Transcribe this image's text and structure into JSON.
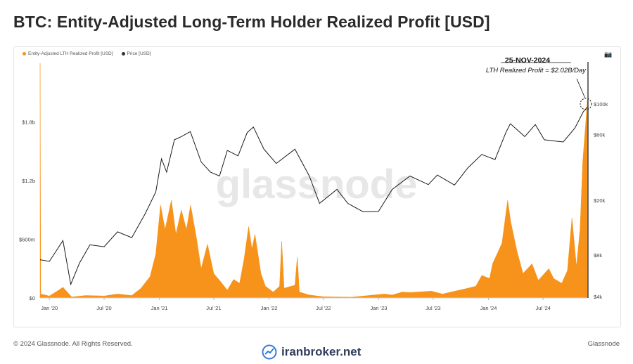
{
  "title": "BTC: Entity-Adjusted Long-Term Holder Realized Profit [USD]",
  "footer": {
    "copyright": "© 2024 Glassnode. All Rights Reserved.",
    "brand": "Glassnode"
  },
  "watermark": "glassnode",
  "branding": {
    "site": "iranbroker.net"
  },
  "colors": {
    "profit": "#f7931a",
    "price": "#1a1a1a",
    "annotation": "#111111"
  },
  "chart_data": {
    "type": "area",
    "legend": [
      {
        "name": "Entity-Adjusted LTH Realized Profit [USD]",
        "color": "#f7931a"
      },
      {
        "name": "Price [USD]",
        "color": "#333333"
      }
    ],
    "x_ticks": [
      "Jan '20",
      "Jul '20",
      "Jan '21",
      "Jul '21",
      "Jan '22",
      "Jul '22",
      "Jan '23",
      "Jul '23",
      "Jan '24",
      "Jul '24"
    ],
    "x_range": [
      "2019-12-01",
      "2024-11-25"
    ],
    "y_left": {
      "ticks": [
        "$0",
        "$600m",
        "$1.2b",
        "$1.8b"
      ],
      "tick_values": [
        0,
        600000000,
        1200000000,
        1800000000
      ],
      "range": [
        0,
        2400000000
      ]
    },
    "y_right": {
      "ticks": [
        "$4k",
        "$8k",
        "$20k",
        "$60k",
        "$100k"
      ],
      "tick_values": [
        4000,
        8000,
        20000,
        60000,
        100000
      ],
      "scale": "log"
    },
    "annotation": {
      "date": "25-NOV-2024",
      "text": "LTH Realized Profit = $2.02B/Day"
    },
    "series": [
      {
        "name": "Entity-Adjusted LTH Realized Profit [USD]",
        "axis": "left",
        "points": [
          [
            "2019-12-01",
            2400000000
          ],
          [
            "2019-12-03",
            40000000
          ],
          [
            "2020-01-01",
            20000000
          ],
          [
            "2020-02-01",
            80000000
          ],
          [
            "2020-02-15",
            110000000
          ],
          [
            "2020-03-15",
            10000000
          ],
          [
            "2020-05-01",
            25000000
          ],
          [
            "2020-07-01",
            20000000
          ],
          [
            "2020-08-15",
            40000000
          ],
          [
            "2020-10-01",
            25000000
          ],
          [
            "2020-11-01",
            100000000
          ],
          [
            "2020-12-01",
            220000000
          ],
          [
            "2020-12-20",
            450000000
          ],
          [
            "2021-01-05",
            950000000
          ],
          [
            "2021-01-20",
            700000000
          ],
          [
            "2021-02-10",
            1000000000
          ],
          [
            "2021-02-25",
            650000000
          ],
          [
            "2021-03-15",
            900000000
          ],
          [
            "2021-04-01",
            700000000
          ],
          [
            "2021-04-15",
            950000000
          ],
          [
            "2021-05-05",
            600000000
          ],
          [
            "2021-05-20",
            300000000
          ],
          [
            "2021-06-10",
            550000000
          ],
          [
            "2021-07-01",
            250000000
          ],
          [
            "2021-07-20",
            180000000
          ],
          [
            "2021-08-15",
            80000000
          ],
          [
            "2021-09-05",
            190000000
          ],
          [
            "2021-09-25",
            150000000
          ],
          [
            "2021-10-10",
            400000000
          ],
          [
            "2021-10-25",
            730000000
          ],
          [
            "2021-11-05",
            500000000
          ],
          [
            "2021-11-15",
            650000000
          ],
          [
            "2021-12-05",
            250000000
          ],
          [
            "2021-12-20",
            120000000
          ],
          [
            "2022-01-15",
            60000000
          ],
          [
            "2022-02-05",
            120000000
          ],
          [
            "2022-02-12",
            580000000
          ],
          [
            "2022-02-20",
            100000000
          ],
          [
            "2022-03-28",
            130000000
          ],
          [
            "2022-04-05",
            420000000
          ],
          [
            "2022-04-12",
            60000000
          ],
          [
            "2022-05-15",
            30000000
          ],
          [
            "2022-07-01",
            12000000
          ],
          [
            "2022-10-01",
            8000000
          ],
          [
            "2023-01-20",
            40000000
          ],
          [
            "2023-02-15",
            30000000
          ],
          [
            "2023-03-20",
            60000000
          ],
          [
            "2023-04-15",
            55000000
          ],
          [
            "2023-06-25",
            70000000
          ],
          [
            "2023-08-01",
            40000000
          ],
          [
            "2023-10-25",
            100000000
          ],
          [
            "2023-11-20",
            120000000
          ],
          [
            "2023-12-10",
            230000000
          ],
          [
            "2024-01-05",
            200000000
          ],
          [
            "2024-01-15",
            350000000
          ],
          [
            "2024-02-15",
            560000000
          ],
          [
            "2024-03-05",
            1000000000
          ],
          [
            "2024-03-15",
            780000000
          ],
          [
            "2024-04-05",
            480000000
          ],
          [
            "2024-04-25",
            250000000
          ],
          [
            "2024-05-25",
            350000000
          ],
          [
            "2024-06-15",
            180000000
          ],
          [
            "2024-07-20",
            300000000
          ],
          [
            "2024-08-05",
            200000000
          ],
          [
            "2024-09-01",
            150000000
          ],
          [
            "2024-09-20",
            280000000
          ],
          [
            "2024-10-05",
            820000000
          ],
          [
            "2024-10-20",
            320000000
          ],
          [
            "2024-11-01",
            700000000
          ],
          [
            "2024-11-10",
            1400000000
          ],
          [
            "2024-11-20",
            1800000000
          ],
          [
            "2024-11-25",
            2020000000
          ]
        ]
      },
      {
        "name": "Price [USD]",
        "axis": "right",
        "points": [
          [
            "2019-12-01",
            7400
          ],
          [
            "2020-01-01",
            7200
          ],
          [
            "2020-02-15",
            10200
          ],
          [
            "2020-03-12",
            4900
          ],
          [
            "2020-04-10",
            7000
          ],
          [
            "2020-05-15",
            9500
          ],
          [
            "2020-07-01",
            9200
          ],
          [
            "2020-08-15",
            11800
          ],
          [
            "2020-10-01",
            10700
          ],
          [
            "2020-11-15",
            16000
          ],
          [
            "2020-12-20",
            23000
          ],
          [
            "2021-01-08",
            40000
          ],
          [
            "2021-01-25",
            32000
          ],
          [
            "2021-02-20",
            55000
          ],
          [
            "2021-03-15",
            58000
          ],
          [
            "2021-04-14",
            63000
          ],
          [
            "2021-05-20",
            38000
          ],
          [
            "2021-06-20",
            32000
          ],
          [
            "2021-07-20",
            30000
          ],
          [
            "2021-08-15",
            46000
          ],
          [
            "2021-09-20",
            42000
          ],
          [
            "2021-10-20",
            62000
          ],
          [
            "2021-11-10",
            68000
          ],
          [
            "2021-12-15",
            47000
          ],
          [
            "2022-01-25",
            37000
          ],
          [
            "2022-03-28",
            47000
          ],
          [
            "2022-05-15",
            30000
          ],
          [
            "2022-06-18",
            19000
          ],
          [
            "2022-08-15",
            24000
          ],
          [
            "2022-09-20",
            19000
          ],
          [
            "2022-11-10",
            16500
          ],
          [
            "2022-12-31",
            16600
          ],
          [
            "2023-02-15",
            24000
          ],
          [
            "2023-04-15",
            30000
          ],
          [
            "2023-06-15",
            26000
          ],
          [
            "2023-07-15",
            30500
          ],
          [
            "2023-09-10",
            25800
          ],
          [
            "2023-10-25",
            34500
          ],
          [
            "2023-12-10",
            43000
          ],
          [
            "2024-01-23",
            39500
          ],
          [
            "2024-02-28",
            62000
          ],
          [
            "2024-03-14",
            72000
          ],
          [
            "2024-05-01",
            58000
          ],
          [
            "2024-06-05",
            71000
          ],
          [
            "2024-07-05",
            55000
          ],
          [
            "2024-08-05",
            54000
          ],
          [
            "2024-09-06",
            53000
          ],
          [
            "2024-10-15",
            67000
          ],
          [
            "2024-11-12",
            88000
          ],
          [
            "2024-11-25",
            95000
          ]
        ]
      }
    ]
  }
}
